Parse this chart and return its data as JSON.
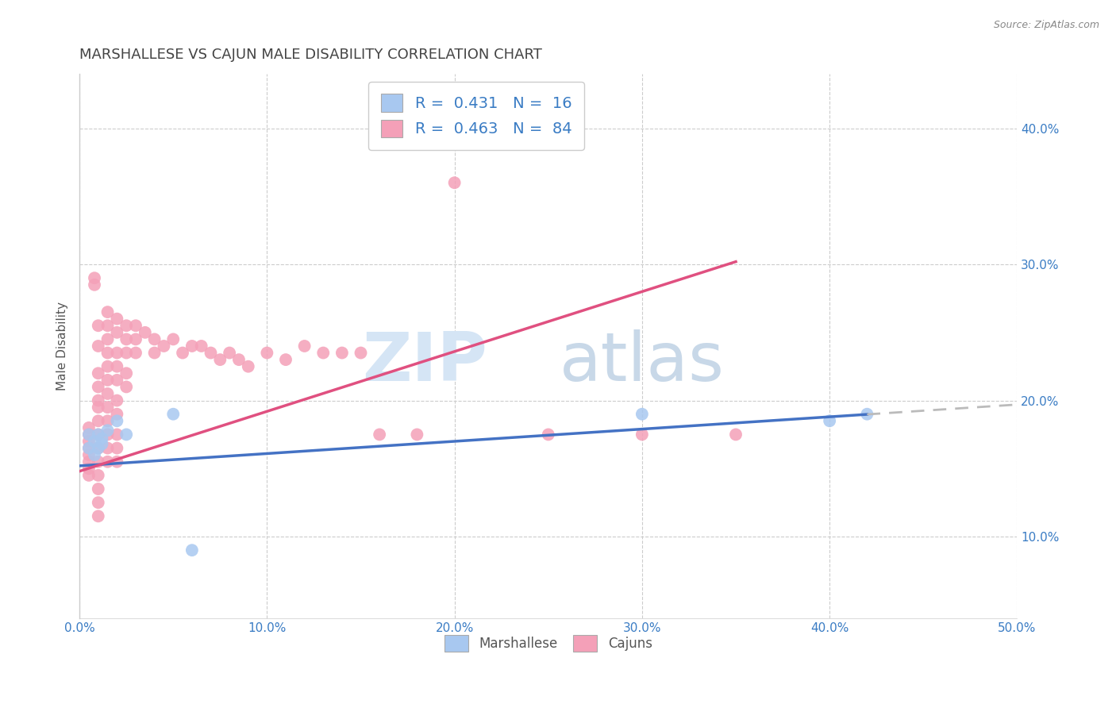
{
  "title": "MARSHALLESE VS CAJUN MALE DISABILITY CORRELATION CHART",
  "source": "Source: ZipAtlas.com",
  "ylabel": "Male Disability",
  "xlim": [
    0.0,
    0.5
  ],
  "ylim": [
    0.04,
    0.44
  ],
  "xtick_labels": [
    "0.0%",
    "10.0%",
    "20.0%",
    "30.0%",
    "40.0%",
    "50.0%"
  ],
  "xtick_vals": [
    0.0,
    0.1,
    0.2,
    0.3,
    0.4,
    0.5
  ],
  "ytick_labels": [
    "10.0%",
    "20.0%",
    "30.0%",
    "40.0%"
  ],
  "ytick_vals": [
    0.1,
    0.2,
    0.3,
    0.4
  ],
  "marshallese_color": "#A8C8F0",
  "cajun_color": "#F4A0B8",
  "marshallese_line_color": "#4472C4",
  "cajun_line_color": "#E05080",
  "trend_ext_color": "#BBBBBB",
  "background_color": "#FFFFFF",
  "marshallese_scatter": [
    [
      0.005,
      0.175
    ],
    [
      0.005,
      0.165
    ],
    [
      0.008,
      0.17
    ],
    [
      0.008,
      0.16
    ],
    [
      0.01,
      0.175
    ],
    [
      0.01,
      0.165
    ],
    [
      0.012,
      0.172
    ],
    [
      0.012,
      0.168
    ],
    [
      0.015,
      0.178
    ],
    [
      0.02,
      0.185
    ],
    [
      0.025,
      0.175
    ],
    [
      0.05,
      0.19
    ],
    [
      0.06,
      0.09
    ],
    [
      0.3,
      0.19
    ],
    [
      0.4,
      0.185
    ],
    [
      0.42,
      0.19
    ]
  ],
  "cajun_scatter": [
    [
      0.005,
      0.18
    ],
    [
      0.005,
      0.175
    ],
    [
      0.005,
      0.17
    ],
    [
      0.005,
      0.165
    ],
    [
      0.005,
      0.16
    ],
    [
      0.005,
      0.155
    ],
    [
      0.005,
      0.15
    ],
    [
      0.005,
      0.145
    ],
    [
      0.008,
      0.29
    ],
    [
      0.008,
      0.285
    ],
    [
      0.01,
      0.255
    ],
    [
      0.01,
      0.24
    ],
    [
      0.01,
      0.22
    ],
    [
      0.01,
      0.21
    ],
    [
      0.01,
      0.2
    ],
    [
      0.01,
      0.195
    ],
    [
      0.01,
      0.185
    ],
    [
      0.01,
      0.175
    ],
    [
      0.01,
      0.165
    ],
    [
      0.01,
      0.155
    ],
    [
      0.01,
      0.145
    ],
    [
      0.01,
      0.135
    ],
    [
      0.01,
      0.125
    ],
    [
      0.01,
      0.115
    ],
    [
      0.015,
      0.265
    ],
    [
      0.015,
      0.255
    ],
    [
      0.015,
      0.245
    ],
    [
      0.015,
      0.235
    ],
    [
      0.015,
      0.225
    ],
    [
      0.015,
      0.215
    ],
    [
      0.015,
      0.205
    ],
    [
      0.015,
      0.195
    ],
    [
      0.015,
      0.185
    ],
    [
      0.015,
      0.175
    ],
    [
      0.015,
      0.165
    ],
    [
      0.015,
      0.155
    ],
    [
      0.02,
      0.26
    ],
    [
      0.02,
      0.25
    ],
    [
      0.02,
      0.235
    ],
    [
      0.02,
      0.225
    ],
    [
      0.02,
      0.215
    ],
    [
      0.02,
      0.2
    ],
    [
      0.02,
      0.19
    ],
    [
      0.02,
      0.175
    ],
    [
      0.02,
      0.165
    ],
    [
      0.02,
      0.155
    ],
    [
      0.025,
      0.255
    ],
    [
      0.025,
      0.245
    ],
    [
      0.025,
      0.235
    ],
    [
      0.025,
      0.22
    ],
    [
      0.025,
      0.21
    ],
    [
      0.03,
      0.255
    ],
    [
      0.03,
      0.245
    ],
    [
      0.03,
      0.235
    ],
    [
      0.035,
      0.25
    ],
    [
      0.04,
      0.245
    ],
    [
      0.04,
      0.235
    ],
    [
      0.045,
      0.24
    ],
    [
      0.05,
      0.245
    ],
    [
      0.055,
      0.235
    ],
    [
      0.06,
      0.24
    ],
    [
      0.065,
      0.24
    ],
    [
      0.07,
      0.235
    ],
    [
      0.075,
      0.23
    ],
    [
      0.08,
      0.235
    ],
    [
      0.085,
      0.23
    ],
    [
      0.09,
      0.225
    ],
    [
      0.1,
      0.235
    ],
    [
      0.11,
      0.23
    ],
    [
      0.12,
      0.24
    ],
    [
      0.13,
      0.235
    ],
    [
      0.14,
      0.235
    ],
    [
      0.15,
      0.235
    ],
    [
      0.16,
      0.175
    ],
    [
      0.18,
      0.175
    ],
    [
      0.2,
      0.36
    ],
    [
      0.25,
      0.175
    ],
    [
      0.3,
      0.175
    ],
    [
      0.35,
      0.175
    ]
  ],
  "title_fontsize": 13,
  "tick_fontsize": 11,
  "legend_fontsize": 14
}
